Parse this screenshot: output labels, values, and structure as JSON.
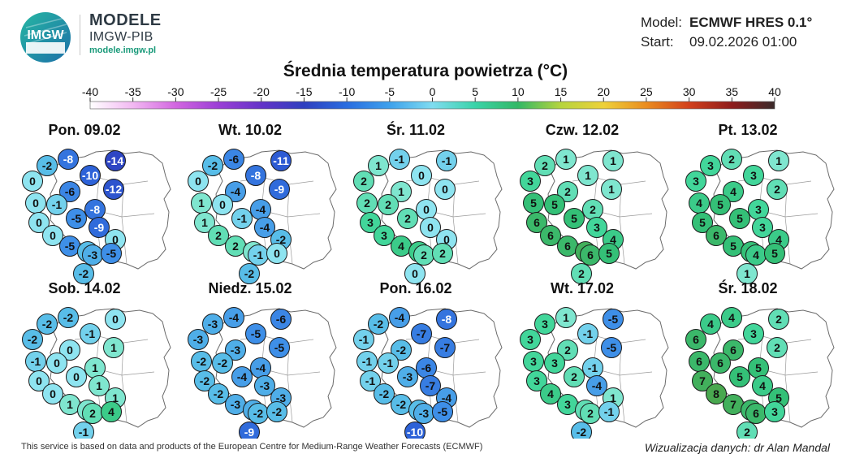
{
  "brand": {
    "logo_text": "IMGW",
    "title": "MODELE",
    "subtitle": "IMGW-PIB",
    "url": "modele.imgw.pl"
  },
  "model_info": {
    "model_label": "Model:",
    "model_value": "ECMWF HRES 0.1°",
    "start_label": "Start:",
    "start_value": "09.02.2026 01:00"
  },
  "title": "Średnia temperatura powietrza (°C)",
  "colorbar": {
    "ticks": [
      "-40",
      "-35",
      "-30",
      "-25",
      "-20",
      "-15",
      "-10",
      "-5",
      "0",
      "5",
      "10",
      "15",
      "20",
      "25",
      "30",
      "35",
      "40"
    ]
  },
  "days": [
    {
      "label": "Pon. 09.02",
      "values": [
        "-2",
        "-8",
        "-10",
        "-14",
        "0",
        "-6",
        "-12",
        "0",
        "-1",
        "-8",
        "0",
        "-5",
        "-9",
        "0",
        "0",
        "-5",
        "-2",
        "-3",
        "-5",
        "-2"
      ]
    },
    {
      "label": "Wt. 10.02",
      "values": [
        "-2",
        "-6",
        "-8",
        "-11",
        "0",
        "-4",
        "-9",
        "1",
        "0",
        "-4",
        "1",
        "-1",
        "-4",
        "2",
        "-2",
        "2",
        "1",
        "-1",
        "0",
        "-2"
      ]
    },
    {
      "label": "Śr. 11.02",
      "values": [
        "1",
        "-1",
        "0",
        "-1",
        "2",
        "1",
        "0",
        "2",
        "2",
        "0",
        "3",
        "2",
        "0",
        "3",
        "0",
        "4",
        "4",
        "2",
        "2",
        "0"
      ]
    },
    {
      "label": "Czw. 12.02",
      "values": [
        "2",
        "1",
        "1",
        "1",
        "3",
        "2",
        "1",
        "5",
        "5",
        "2",
        "6",
        "5",
        "3",
        "6",
        "4",
        "6",
        "7",
        "6",
        "5",
        "2"
      ]
    },
    {
      "label": "Pt. 13.02",
      "values": [
        "3",
        "2",
        "3",
        "1",
        "3",
        "4",
        "2",
        "4",
        "5",
        "3",
        "5",
        "5",
        "3",
        "6",
        "4",
        "5",
        "5",
        "4",
        "5",
        "1"
      ]
    },
    {
      "label": "Sob. 14.02",
      "values": [
        "-2",
        "-2",
        "-1",
        "0",
        "-2",
        "0",
        "1",
        "-1",
        "0",
        "1",
        "0",
        "0",
        "1",
        "0",
        "1",
        "1",
        "1",
        "2",
        "4",
        "-1"
      ]
    },
    {
      "label": "Niedz. 15.02",
      "values": [
        "-3",
        "-4",
        "-5",
        "-6",
        "-3",
        "-3",
        "-5",
        "-2",
        "-2",
        "-4",
        "-2",
        "-4",
        "-3",
        "-2",
        "-3",
        "-3",
        "-3",
        "-2",
        "-2",
        "-9"
      ]
    },
    {
      "label": "Pon. 16.02",
      "values": [
        "-2",
        "-4",
        "-7",
        "-8",
        "-1",
        "-2",
        "-7",
        "-1",
        "-1",
        "-6",
        "-1",
        "-3",
        "-7",
        "-2",
        "-4",
        "-2",
        "-2",
        "-3",
        "-5",
        "-10"
      ]
    },
    {
      "label": "Wt. 17.02",
      "values": [
        "3",
        "1",
        "-1",
        "-5",
        "3",
        "2",
        "-5",
        "3",
        "3",
        "-1",
        "3",
        "2",
        "-4",
        "4",
        "1",
        "3",
        "2",
        "2",
        "-1",
        "-2"
      ]
    },
    {
      "label": "Śr. 18.02",
      "values": [
        "4",
        "4",
        "3",
        "2",
        "6",
        "6",
        "2",
        "6",
        "6",
        "5",
        "7",
        "5",
        "4",
        "8",
        "5",
        "7",
        "6",
        "6",
        "3",
        "2"
      ]
    }
  ],
  "footer": {
    "source": "This service is based on data and products of the European Centre for Medium-Range Weather Forecasts (ECMWF)",
    "credit": "Wizualizacja danych: dr Alan Mandal"
  }
}
